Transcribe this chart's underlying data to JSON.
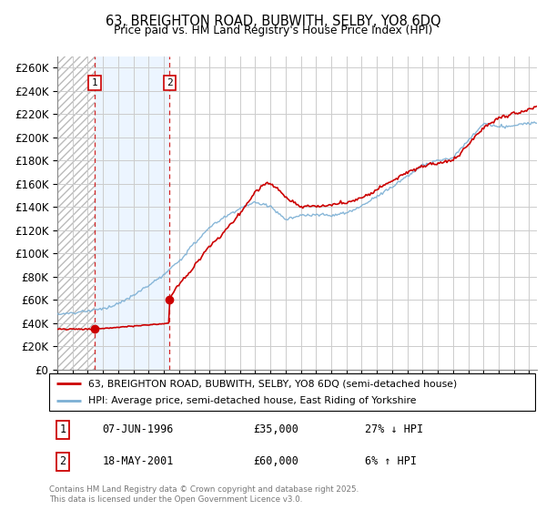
{
  "title": "63, BREIGHTON ROAD, BUBWITH, SELBY, YO8 6DQ",
  "subtitle": "Price paid vs. HM Land Registry's House Price Index (HPI)",
  "legend_line1": "63, BREIGHTON ROAD, BUBWITH, SELBY, YO8 6DQ (semi-detached house)",
  "legend_line2": "HPI: Average price, semi-detached house, East Riding of Yorkshire",
  "footer": "Contains HM Land Registry data © Crown copyright and database right 2025.\nThis data is licensed under the Open Government Licence v3.0.",
  "transaction1_date": "07-JUN-1996",
  "transaction1_price": "£35,000",
  "transaction1_hpi": "27% ↓ HPI",
  "transaction1_year": 1996.44,
  "transaction1_value": 35000,
  "transaction2_date": "18-MAY-2001",
  "transaction2_price": "£60,000",
  "transaction2_hpi": "6% ↑ HPI",
  "transaction2_year": 2001.38,
  "transaction2_value": 60000,
  "red_color": "#cc0000",
  "blue_color": "#7bafd4",
  "hatch_color": "#bbbbbb",
  "bg_shade_color": "#ddeeff",
  "grid_color": "#cccccc",
  "ylim": [
    0,
    270000
  ],
  "xmin": 1994,
  "xmax": 2025.5
}
